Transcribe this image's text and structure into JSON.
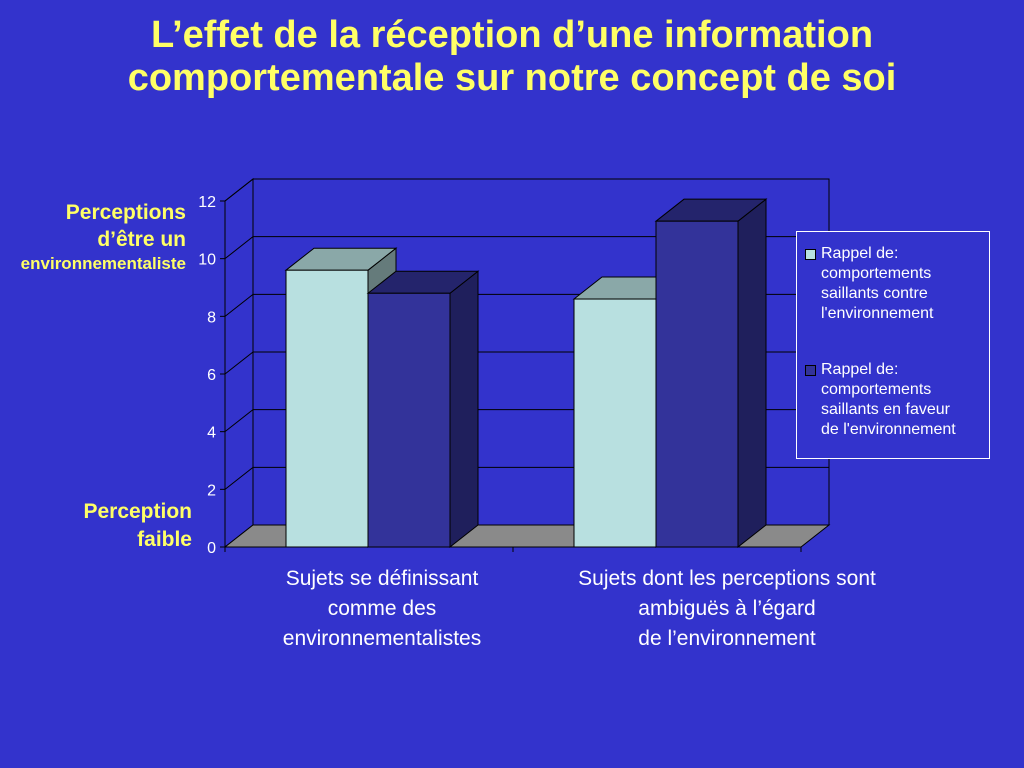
{
  "title": "L’effet de la réception d’une information comportementale sur notre concept de soi",
  "y_label_high": {
    "line1": "Perceptions",
    "line2": "d’être un",
    "line3": "environnementaliste"
  },
  "y_label_low": {
    "line1": "Perception",
    "line2": "faible"
  },
  "chart_data": {
    "type": "bar",
    "categories": [
      "Sujets se définissant comme des environnementalistes",
      "Sujets dont les perceptions sont ambiguës à l’égard de l’environnement"
    ],
    "category_lines": [
      [
        "Sujets se définissant",
        "comme des",
        "environnementalistes"
      ],
      [
        "Sujets dont les perceptions sont",
        "ambiguës à l’égard",
        "de l’environnement"
      ]
    ],
    "series": [
      {
        "name": "Rappel de: comportements saillants contre l'environnement",
        "values": [
          9.6,
          8.6
        ],
        "color": "#b8e0e0"
      },
      {
        "name": "Rappel de: comportements saillants en faveur de l'environnement",
        "values": [
          8.8,
          11.3
        ],
        "color": "#33339a"
      }
    ],
    "ylim": [
      0,
      12
    ],
    "yticks": [
      "0",
      "2",
      "4",
      "6",
      "8",
      "10",
      "12"
    ],
    "grid": true,
    "legend_position": "right",
    "three_d": true
  },
  "legend": {
    "item1": "Rappel de:\ncomportements\nsaillants contre\nl'environnement",
    "item2": "Rappel de:\ncomportements\nsaillants en faveur\nde l'environnement"
  }
}
